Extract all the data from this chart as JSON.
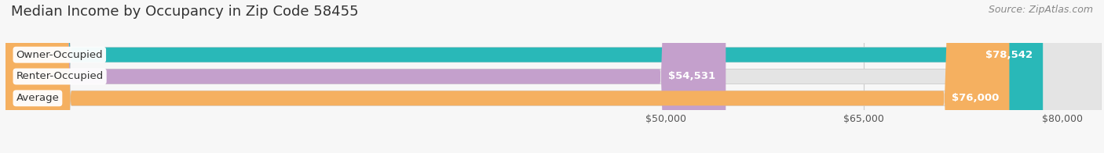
{
  "title": "Median Income by Occupancy in Zip Code 58455",
  "source": "Source: ZipAtlas.com",
  "categories": [
    "Owner-Occupied",
    "Renter-Occupied",
    "Average"
  ],
  "values": [
    78542,
    54531,
    76000
  ],
  "bar_colors": [
    "#29b8b8",
    "#c4a0cc",
    "#f5b060"
  ],
  "value_labels": [
    "$78,542",
    "$54,531",
    "$76,000"
  ],
  "xlim": [
    0,
    83000
  ],
  "xticks": [
    50000,
    65000,
    80000
  ],
  "xtick_labels": [
    "$50,000",
    "$65,000",
    "$80,000"
  ],
  "background_color": "#f7f7f7",
  "bar_background_color": "#e4e4e4",
  "title_fontsize": 13,
  "source_fontsize": 9,
  "label_fontsize": 9.5,
  "value_fontsize": 9.5,
  "tick_fontsize": 9
}
